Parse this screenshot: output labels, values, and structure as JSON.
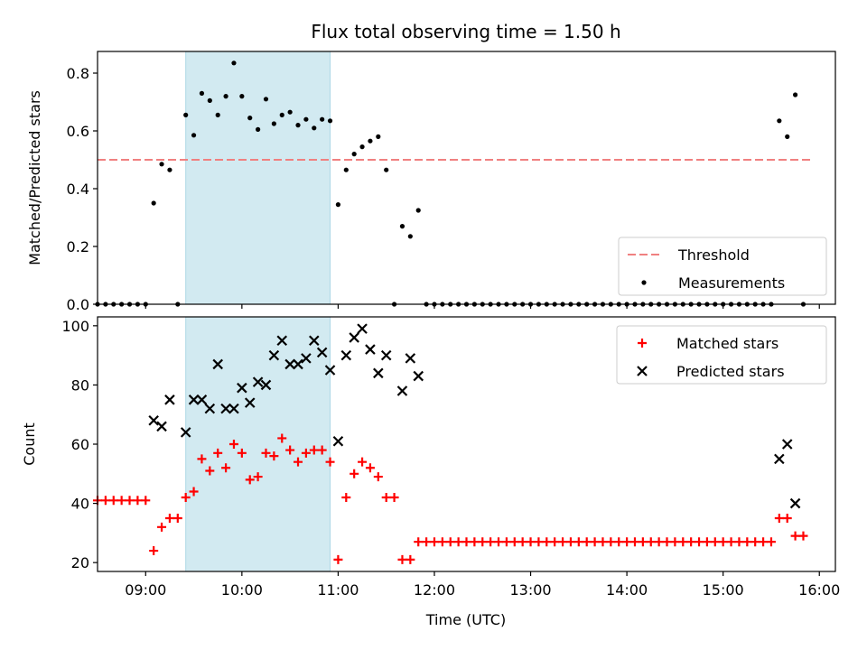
{
  "title": "Flux total observing time = 1.50 h",
  "xlabel": "Time (UTC)",
  "x_ticks": [
    "09:00",
    "10:00",
    "11:00",
    "12:00",
    "13:00",
    "14:00",
    "15:00",
    "16:00"
  ],
  "colors": {
    "threshold": "#f08080",
    "highlight": "#add8e6",
    "matched": "#ff0000",
    "predicted": "#000000",
    "measurement": "#000000"
  },
  "chart_data": [
    {
      "type": "scatter",
      "ylabel": "Matched/Predicted stars",
      "xlim": [
        "08:30",
        "16:10"
      ],
      "ylim": [
        0,
        0.875
      ],
      "y_ticks": [
        "0.0",
        "0.2",
        "0.4",
        "0.6",
        "0.8"
      ],
      "highlight_span": [
        "09:25",
        "10:55"
      ],
      "threshold": {
        "name": "Threshold",
        "value": 0.5,
        "x_range": [
          "08:30",
          "15:55"
        ]
      },
      "legend": [
        "Threshold",
        "Measurements"
      ],
      "legend_position": "lower right",
      "series": [
        {
          "name": "Measurements",
          "points": [
            [
              "08:30",
              0
            ],
            [
              "08:35",
              0
            ],
            [
              "08:40",
              0
            ],
            [
              "08:45",
              0
            ],
            [
              "08:50",
              0
            ],
            [
              "08:55",
              0
            ],
            [
              "09:00",
              0
            ],
            [
              "09:05",
              0.35
            ],
            [
              "09:10",
              0.485
            ],
            [
              "09:15",
              0.465
            ],
            [
              "09:20",
              0
            ],
            [
              "09:25",
              0.655
            ],
            [
              "09:30",
              0.585
            ],
            [
              "09:35",
              0.73
            ],
            [
              "09:40",
              0.705
            ],
            [
              "09:45",
              0.655
            ],
            [
              "09:50",
              0.72
            ],
            [
              "09:55",
              0.835
            ],
            [
              "10:00",
              0.72
            ],
            [
              "10:05",
              0.645
            ],
            [
              "10:10",
              0.605
            ],
            [
              "10:15",
              0.71
            ],
            [
              "10:20",
              0.625
            ],
            [
              "10:25",
              0.655
            ],
            [
              "10:30",
              0.665
            ],
            [
              "10:35",
              0.62
            ],
            [
              "10:40",
              0.64
            ],
            [
              "10:45",
              0.61
            ],
            [
              "10:50",
              0.64
            ],
            [
              "10:55",
              0.635
            ],
            [
              "11:00",
              0.345
            ],
            [
              "11:05",
              0.465
            ],
            [
              "11:10",
              0.52
            ],
            [
              "11:15",
              0.545
            ],
            [
              "11:20",
              0.565
            ],
            [
              "11:25",
              0.58
            ],
            [
              "11:30",
              0.465
            ],
            [
              "11:35",
              0
            ],
            [
              "11:40",
              0.27
            ],
            [
              "11:45",
              0.235
            ],
            [
              "11:50",
              0.325
            ],
            [
              "11:55",
              0
            ],
            [
              "12:00",
              0
            ],
            [
              "12:05",
              0
            ],
            [
              "12:10",
              0
            ],
            [
              "12:15",
              0
            ],
            [
              "12:20",
              0
            ],
            [
              "12:25",
              0
            ],
            [
              "12:30",
              0
            ],
            [
              "12:35",
              0
            ],
            [
              "12:40",
              0
            ],
            [
              "12:45",
              0
            ],
            [
              "12:50",
              0
            ],
            [
              "12:55",
              0
            ],
            [
              "13:00",
              0
            ],
            [
              "13:05",
              0
            ],
            [
              "13:10",
              0
            ],
            [
              "13:15",
              0
            ],
            [
              "13:20",
              0
            ],
            [
              "13:25",
              0
            ],
            [
              "13:30",
              0
            ],
            [
              "13:35",
              0
            ],
            [
              "13:40",
              0
            ],
            [
              "13:45",
              0
            ],
            [
              "13:50",
              0
            ],
            [
              "13:55",
              0
            ],
            [
              "14:00",
              0
            ],
            [
              "14:05",
              0
            ],
            [
              "14:10",
              0
            ],
            [
              "14:15",
              0
            ],
            [
              "14:20",
              0
            ],
            [
              "14:25",
              0
            ],
            [
              "14:30",
              0
            ],
            [
              "14:35",
              0
            ],
            [
              "14:40",
              0
            ],
            [
              "14:45",
              0
            ],
            [
              "14:50",
              0
            ],
            [
              "14:55",
              0
            ],
            [
              "15:00",
              0
            ],
            [
              "15:05",
              0
            ],
            [
              "15:10",
              0
            ],
            [
              "15:15",
              0
            ],
            [
              "15:20",
              0
            ],
            [
              "15:25",
              0
            ],
            [
              "15:30",
              0
            ],
            [
              "15:35",
              0.635
            ],
            [
              "15:40",
              0.58
            ],
            [
              "15:45",
              0.725
            ],
            [
              "15:50",
              0
            ]
          ]
        }
      ]
    },
    {
      "type": "scatter",
      "ylabel": "Count",
      "xlim": [
        "08:30",
        "16:10"
      ],
      "ylim": [
        17,
        103
      ],
      "y_ticks": [
        "20",
        "40",
        "60",
        "80",
        "100"
      ],
      "highlight_span": [
        "09:25",
        "10:55"
      ],
      "legend": [
        "Matched stars",
        "Predicted stars"
      ],
      "legend_position": "upper right",
      "series": [
        {
          "name": "Matched stars",
          "points": [
            [
              "08:30",
              41
            ],
            [
              "08:35",
              41
            ],
            [
              "08:40",
              41
            ],
            [
              "08:45",
              41
            ],
            [
              "08:50",
              41
            ],
            [
              "08:55",
              41
            ],
            [
              "09:00",
              41
            ],
            [
              "09:05",
              24
            ],
            [
              "09:10",
              32
            ],
            [
              "09:15",
              35
            ],
            [
              "09:20",
              35
            ],
            [
              "09:25",
              42
            ],
            [
              "09:30",
              44
            ],
            [
              "09:35",
              55
            ],
            [
              "09:40",
              51
            ],
            [
              "09:45",
              57
            ],
            [
              "09:50",
              52
            ],
            [
              "09:55",
              60
            ],
            [
              "10:00",
              57
            ],
            [
              "10:05",
              48
            ],
            [
              "10:10",
              49
            ],
            [
              "10:15",
              57
            ],
            [
              "10:20",
              56
            ],
            [
              "10:25",
              62
            ],
            [
              "10:30",
              58
            ],
            [
              "10:35",
              54
            ],
            [
              "10:40",
              57
            ],
            [
              "10:45",
              58
            ],
            [
              "10:50",
              58
            ],
            [
              "10:55",
              54
            ],
            [
              "11:00",
              21
            ],
            [
              "11:05",
              42
            ],
            [
              "11:10",
              50
            ],
            [
              "11:15",
              54
            ],
            [
              "11:20",
              52
            ],
            [
              "11:25",
              49
            ],
            [
              "11:30",
              42
            ],
            [
              "11:35",
              42
            ],
            [
              "11:40",
              21
            ],
            [
              "11:45",
              21
            ],
            [
              "11:50",
              27
            ],
            [
              "11:55",
              27
            ],
            [
              "12:00",
              27
            ],
            [
              "12:05",
              27
            ],
            [
              "12:10",
              27
            ],
            [
              "12:15",
              27
            ],
            [
              "12:20",
              27
            ],
            [
              "12:25",
              27
            ],
            [
              "12:30",
              27
            ],
            [
              "12:35",
              27
            ],
            [
              "12:40",
              27
            ],
            [
              "12:45",
              27
            ],
            [
              "12:50",
              27
            ],
            [
              "12:55",
              27
            ],
            [
              "13:00",
              27
            ],
            [
              "13:05",
              27
            ],
            [
              "13:10",
              27
            ],
            [
              "13:15",
              27
            ],
            [
              "13:20",
              27
            ],
            [
              "13:25",
              27
            ],
            [
              "13:30",
              27
            ],
            [
              "13:35",
              27
            ],
            [
              "13:40",
              27
            ],
            [
              "13:45",
              27
            ],
            [
              "13:50",
              27
            ],
            [
              "13:55",
              27
            ],
            [
              "14:00",
              27
            ],
            [
              "14:05",
              27
            ],
            [
              "14:10",
              27
            ],
            [
              "14:15",
              27
            ],
            [
              "14:20",
              27
            ],
            [
              "14:25",
              27
            ],
            [
              "14:30",
              27
            ],
            [
              "14:35",
              27
            ],
            [
              "14:40",
              27
            ],
            [
              "14:45",
              27
            ],
            [
              "14:50",
              27
            ],
            [
              "14:55",
              27
            ],
            [
              "15:00",
              27
            ],
            [
              "15:05",
              27
            ],
            [
              "15:10",
              27
            ],
            [
              "15:15",
              27
            ],
            [
              "15:20",
              27
            ],
            [
              "15:25",
              27
            ],
            [
              "15:30",
              27
            ],
            [
              "15:35",
              35
            ],
            [
              "15:40",
              35
            ],
            [
              "15:45",
              29
            ],
            [
              "15:50",
              29
            ]
          ]
        },
        {
          "name": "Predicted stars",
          "points": [
            [
              "09:05",
              68
            ],
            [
              "09:10",
              66
            ],
            [
              "09:15",
              75
            ],
            [
              "09:25",
              64
            ],
            [
              "09:30",
              75
            ],
            [
              "09:35",
              75
            ],
            [
              "09:40",
              72
            ],
            [
              "09:45",
              87
            ],
            [
              "09:50",
              72
            ],
            [
              "09:55",
              72
            ],
            [
              "10:00",
              79
            ],
            [
              "10:05",
              74
            ],
            [
              "10:10",
              81
            ],
            [
              "10:15",
              80
            ],
            [
              "10:20",
              90
            ],
            [
              "10:25",
              95
            ],
            [
              "10:30",
              87
            ],
            [
              "10:35",
              87
            ],
            [
              "10:40",
              89
            ],
            [
              "10:45",
              95
            ],
            [
              "10:50",
              91
            ],
            [
              "10:55",
              85
            ],
            [
              "11:00",
              61
            ],
            [
              "11:05",
              90
            ],
            [
              "11:10",
              96
            ],
            [
              "11:15",
              99
            ],
            [
              "11:20",
              92
            ],
            [
              "11:25",
              84
            ],
            [
              "11:30",
              90
            ],
            [
              "11:40",
              78
            ],
            [
              "11:45",
              89
            ],
            [
              "11:50",
              83
            ],
            [
              "15:35",
              55
            ],
            [
              "15:40",
              60
            ],
            [
              "15:45",
              40
            ]
          ]
        }
      ]
    }
  ]
}
